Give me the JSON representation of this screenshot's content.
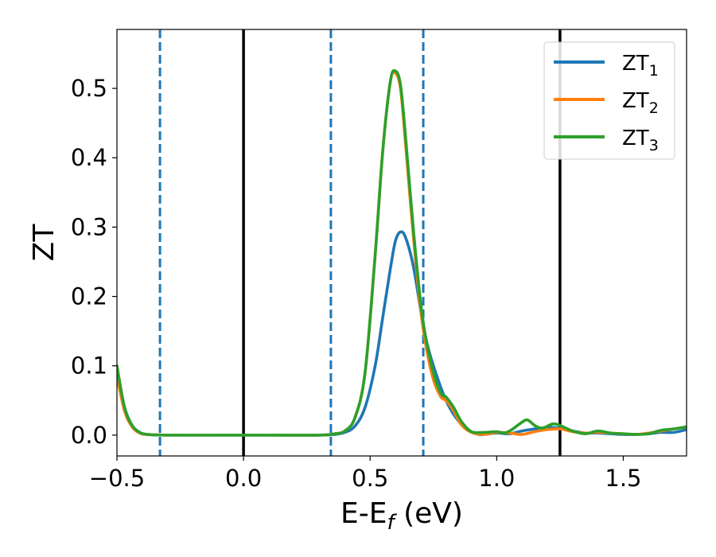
{
  "chart_data": {
    "type": "line",
    "title": "",
    "xlabel": "E-E",
    "xlabel_sub": "f",
    "xlabel_unit": " (eV)",
    "ylabel": "ZT",
    "xlim": [
      -0.5,
      1.75
    ],
    "ylim": [
      -0.03,
      0.585
    ],
    "x_ticks": [
      -0.5,
      0.0,
      0.5,
      1.0,
      1.5
    ],
    "x_tick_labels": [
      "−0.5",
      "0.0",
      "0.5",
      "1.0",
      "1.5"
    ],
    "y_ticks": [
      0.0,
      0.1,
      0.2,
      0.3,
      0.4,
      0.5
    ],
    "y_tick_labels": [
      "0.0",
      "0.1",
      "0.2",
      "0.3",
      "0.4",
      "0.5"
    ],
    "grid": false,
    "legend_position": "upper right",
    "vlines": [
      {
        "x": -0.33,
        "color": "#1f77b4",
        "style": "dashed"
      },
      {
        "x": 0.0,
        "color": "#000000",
        "style": "solid"
      },
      {
        "x": 0.345,
        "color": "#1f77b4",
        "style": "dashed"
      },
      {
        "x": 0.71,
        "color": "#1f77b4",
        "style": "dashed"
      },
      {
        "x": 1.25,
        "color": "#000000",
        "style": "solid"
      }
    ],
    "series": [
      {
        "name": "ZT",
        "name_sub": "1",
        "color": "#1f77b4",
        "x": [
          -0.5,
          -0.47,
          -0.44,
          -0.41,
          -0.38,
          -0.3,
          -0.1,
          0.1,
          0.3,
          0.36,
          0.4,
          0.44,
          0.48,
          0.52,
          0.55,
          0.58,
          0.6,
          0.62,
          0.64,
          0.67,
          0.7,
          0.72,
          0.75,
          0.8,
          0.85,
          0.9,
          0.93,
          0.95,
          1.0,
          1.05,
          1.1,
          1.15,
          1.2,
          1.25,
          1.3,
          1.35,
          1.4,
          1.45,
          1.5,
          1.55,
          1.6,
          1.65,
          1.7,
          1.75
        ],
        "y": [
          0.09,
          0.04,
          0.014,
          0.004,
          0.001,
          0.0,
          0.0,
          0.0,
          0.0,
          0.001,
          0.004,
          0.013,
          0.04,
          0.1,
          0.17,
          0.24,
          0.28,
          0.293,
          0.285,
          0.245,
          0.18,
          0.14,
          0.1,
          0.05,
          0.02,
          0.005,
          0.001,
          0.001,
          0.003,
          0.002,
          0.006,
          0.009,
          0.011,
          0.01,
          0.006,
          0.003,
          0.003,
          0.002,
          0.001,
          0.001,
          0.002,
          0.004,
          0.004,
          0.008
        ]
      },
      {
        "name": "ZT",
        "name_sub": "2",
        "color": "#ff7f0e",
        "x": [
          -0.5,
          -0.47,
          -0.44,
          -0.41,
          -0.38,
          -0.3,
          -0.1,
          0.1,
          0.3,
          0.36,
          0.4,
          0.44,
          0.48,
          0.52,
          0.55,
          0.58,
          0.6,
          0.62,
          0.64,
          0.67,
          0.7,
          0.72,
          0.75,
          0.78,
          0.8,
          0.83,
          0.86,
          0.9,
          0.95,
          1.0,
          1.05,
          1.1,
          1.15,
          1.2,
          1.25,
          1.3,
          1.35,
          1.4,
          1.45,
          1.5,
          1.55,
          1.6,
          1.65,
          1.7,
          1.75
        ],
        "y": [
          0.085,
          0.035,
          0.012,
          0.003,
          0.001,
          0.0,
          0.0,
          0.0,
          0.0,
          0.002,
          0.006,
          0.025,
          0.09,
          0.26,
          0.41,
          0.51,
          0.522,
          0.5,
          0.42,
          0.29,
          0.18,
          0.13,
          0.08,
          0.055,
          0.05,
          0.035,
          0.015,
          0.004,
          0.001,
          0.004,
          0.003,
          0.001,
          0.005,
          0.008,
          0.009,
          0.005,
          0.003,
          0.004,
          0.003,
          0.002,
          0.001,
          0.003,
          0.006,
          0.009,
          0.012
        ]
      },
      {
        "name": "ZT",
        "name_sub": "3",
        "color": "#2ca02c",
        "x": [
          -0.5,
          -0.47,
          -0.44,
          -0.41,
          -0.38,
          -0.3,
          -0.1,
          0.1,
          0.3,
          0.36,
          0.4,
          0.44,
          0.48,
          0.52,
          0.55,
          0.58,
          0.6,
          0.62,
          0.64,
          0.67,
          0.7,
          0.72,
          0.75,
          0.78,
          0.8,
          0.83,
          0.86,
          0.9,
          0.95,
          1.0,
          1.03,
          1.06,
          1.09,
          1.12,
          1.15,
          1.18,
          1.22,
          1.25,
          1.3,
          1.35,
          1.4,
          1.45,
          1.5,
          1.55,
          1.6,
          1.65,
          1.7,
          1.75
        ],
        "y": [
          0.1,
          0.04,
          0.014,
          0.004,
          0.001,
          0.0,
          0.0,
          0.0,
          0.0,
          0.002,
          0.006,
          0.025,
          0.09,
          0.26,
          0.41,
          0.51,
          0.525,
          0.505,
          0.43,
          0.3,
          0.19,
          0.14,
          0.09,
          0.06,
          0.055,
          0.04,
          0.02,
          0.005,
          0.004,
          0.005,
          0.003,
          0.008,
          0.016,
          0.022,
          0.014,
          0.01,
          0.016,
          0.014,
          0.006,
          0.002,
          0.006,
          0.003,
          0.002,
          0.001,
          0.002,
          0.007,
          0.009,
          0.012
        ]
      }
    ]
  }
}
